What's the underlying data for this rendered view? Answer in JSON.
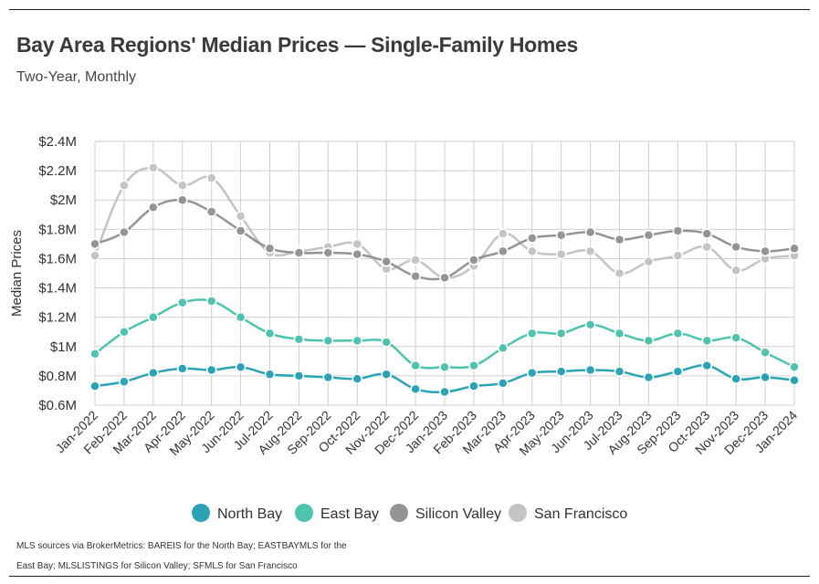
{
  "title": "Bay Area Regions' Median Prices — Single-Family Homes",
  "subtitle": "Two-Year, Monthly",
  "source_note": "MLS sources via BrokerMetrics: BAREIS for the North Bay; EASTBAYMLS for the East Bay; MLSLISTINGS for Silicon Valley; SFMLS for San Francisco",
  "chart_data": {
    "type": "line",
    "title": "Bay Area Regions' Median Prices — Single-Family Homes",
    "subtitle": "Two-Year, Monthly",
    "xlabel": "",
    "ylabel": "Median Prices",
    "ylim": [
      0.6,
      2.4
    ],
    "y_ticks": [
      0.6,
      0.8,
      1.0,
      1.2,
      1.4,
      1.6,
      1.8,
      2.0,
      2.2,
      2.4
    ],
    "y_tick_labels": [
      "$0.6M",
      "$0.8M",
      "$1M",
      "$1.2M",
      "$1.4M",
      "$1.6M",
      "$1.8M",
      "$2M",
      "$2.2M",
      "$2.4M"
    ],
    "grid": true,
    "legend_position": "bottom",
    "categories": [
      "Jan-2022",
      "Feb-2022",
      "Mar-2022",
      "Apr-2022",
      "May-2022",
      "Jun-2022",
      "Jul-2022",
      "Aug-2022",
      "Sep-2022",
      "Oct-2022",
      "Nov-2022",
      "Dec-2022",
      "Jan-2023",
      "Feb-2023",
      "Mar-2023",
      "Apr-2023",
      "May-2023",
      "Jun-2023",
      "Jul-2023",
      "Aug-2023",
      "Sep-2023",
      "Oct-2023",
      "Nov-2023",
      "Dec-2023",
      "Jan-2024"
    ],
    "series": [
      {
        "name": "North Bay",
        "color": "#2aa4b5",
        "values": [
          0.73,
          0.76,
          0.82,
          0.85,
          0.84,
          0.86,
          0.81,
          0.8,
          0.79,
          0.78,
          0.81,
          0.71,
          0.69,
          0.73,
          0.75,
          0.82,
          0.83,
          0.84,
          0.83,
          0.79,
          0.83,
          0.87,
          0.78,
          0.79,
          0.77
        ]
      },
      {
        "name": "East Bay",
        "color": "#4ec3ad",
        "values": [
          0.95,
          1.1,
          1.2,
          1.3,
          1.31,
          1.2,
          1.09,
          1.05,
          1.04,
          1.04,
          1.03,
          0.87,
          0.86,
          0.87,
          0.99,
          1.09,
          1.09,
          1.15,
          1.09,
          1.04,
          1.09,
          1.04,
          1.06,
          0.96,
          0.86
        ]
      },
      {
        "name": "Silicon Valley",
        "color": "#949494",
        "values": [
          1.7,
          1.78,
          1.95,
          2.0,
          1.92,
          1.79,
          1.67,
          1.64,
          1.64,
          1.63,
          1.58,
          1.48,
          1.47,
          1.59,
          1.65,
          1.74,
          1.76,
          1.78,
          1.73,
          1.76,
          1.79,
          1.77,
          1.68,
          1.65,
          1.67
        ]
      },
      {
        "name": "San Francisco",
        "color": "#c4c4c4",
        "values": [
          1.62,
          2.1,
          2.22,
          2.1,
          2.15,
          1.89,
          1.64,
          1.65,
          1.68,
          1.7,
          1.53,
          1.59,
          1.47,
          1.55,
          1.77,
          1.65,
          1.63,
          1.65,
          1.5,
          1.58,
          1.62,
          1.68,
          1.52,
          1.6,
          1.62
        ]
      }
    ]
  }
}
